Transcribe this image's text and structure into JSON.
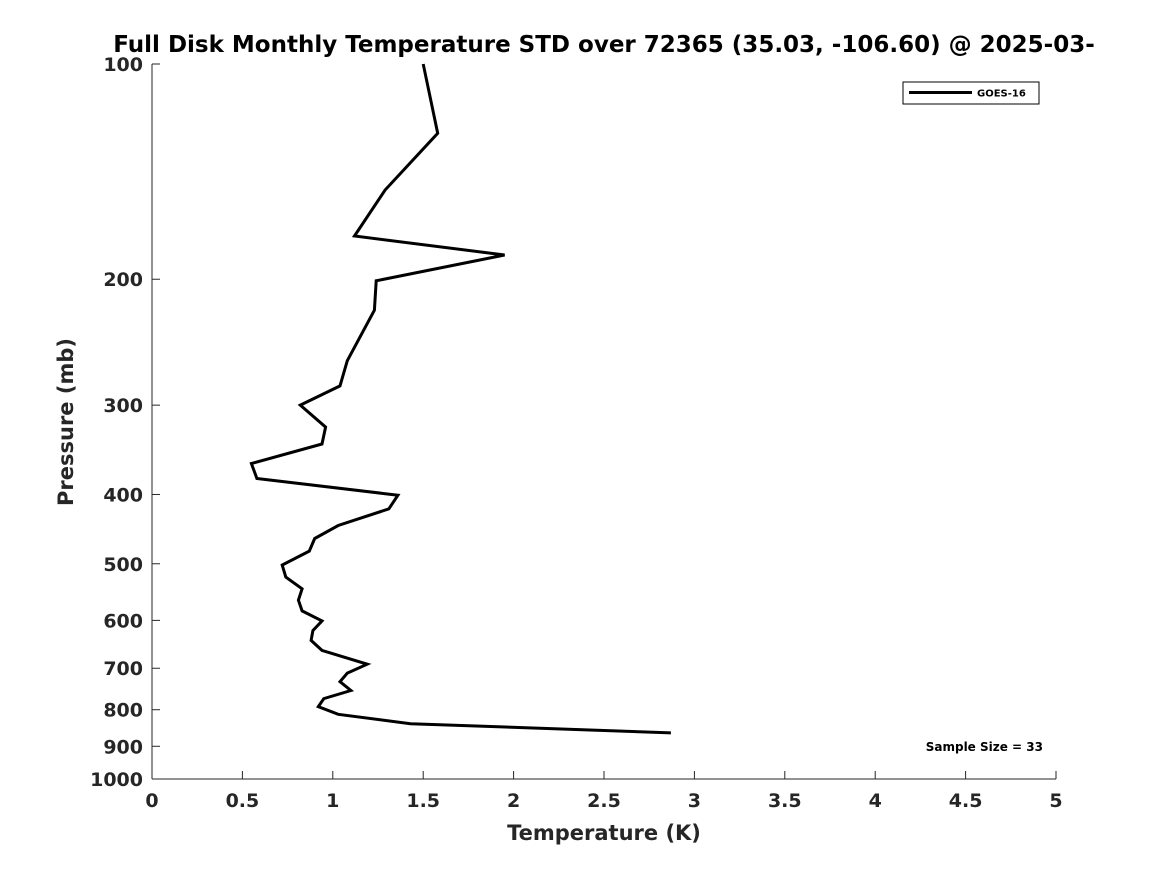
{
  "chart_data": {
    "type": "line",
    "title": "Full Disk Monthly Temperature STD over 72365 (35.03, -106.60) @ 2025-03-",
    "xlabel": "Temperature (K)",
    "ylabel": "Pressure (mb)",
    "xlim": [
      0,
      5
    ],
    "ylim": [
      1000,
      100
    ],
    "y_scale": "log",
    "x_ticks": [
      0,
      0.5,
      1,
      1.5,
      2,
      2.5,
      3,
      3.5,
      4,
      4.5,
      5
    ],
    "x_tick_labels": [
      "0",
      "0.5",
      "1",
      "1.5",
      "2",
      "2.5",
      "3",
      "3.5",
      "4",
      "4.5",
      "5"
    ],
    "y_ticks": [
      100,
      200,
      300,
      400,
      500,
      600,
      700,
      800,
      900,
      1000
    ],
    "y_tick_labels": [
      "100",
      "200",
      "300",
      "400",
      "500",
      "600",
      "700",
      "800",
      "900",
      "1000"
    ],
    "grid": false,
    "legend_position": "top-right",
    "annotation": "Sample Size = 33",
    "series": [
      {
        "name": "GOES-16",
        "color": "#000000",
        "points": [
          [
            1.5,
            100
          ],
          [
            1.58,
            125
          ],
          [
            1.29,
            150
          ],
          [
            1.12,
            174
          ],
          [
            1.95,
            185
          ],
          [
            1.24,
            201
          ],
          [
            1.23,
            221
          ],
          [
            1.08,
            260
          ],
          [
            1.04,
            282
          ],
          [
            0.82,
            300
          ],
          [
            0.96,
            322
          ],
          [
            0.94,
            340
          ],
          [
            0.55,
            362
          ],
          [
            0.58,
            380
          ],
          [
            1.36,
            401
          ],
          [
            1.31,
            419
          ],
          [
            1.03,
            442
          ],
          [
            0.9,
            461
          ],
          [
            0.87,
            480
          ],
          [
            0.72,
            502
          ],
          [
            0.74,
            522
          ],
          [
            0.83,
            542
          ],
          [
            0.81,
            562
          ],
          [
            0.83,
            582
          ],
          [
            0.94,
            601
          ],
          [
            0.89,
            620
          ],
          [
            0.88,
            640
          ],
          [
            0.94,
            661
          ],
          [
            1.19,
            691
          ],
          [
            1.08,
            711
          ],
          [
            1.04,
            731
          ],
          [
            1.1,
            752
          ],
          [
            0.95,
            772
          ],
          [
            0.92,
            792
          ],
          [
            1.03,
            812
          ],
          [
            1.43,
            837
          ],
          [
            2.87,
            862
          ]
        ]
      }
    ]
  }
}
